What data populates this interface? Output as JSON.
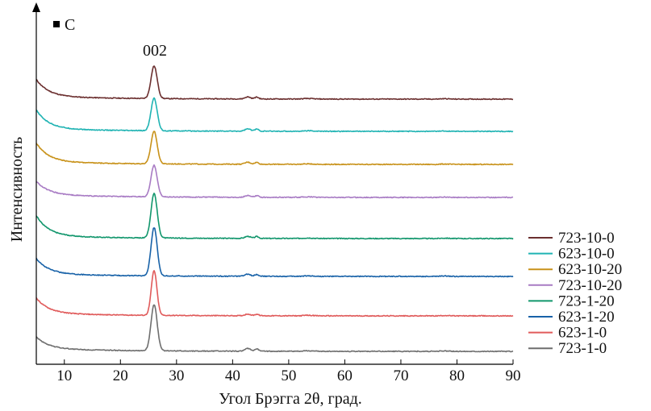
{
  "chart_data": {
    "type": "line",
    "panel_label": "C",
    "xlabel": "Угол Брэгга 2θ, град.",
    "ylabel": "Интенсивность",
    "xlim": [
      5,
      90
    ],
    "xticks": [
      10,
      20,
      30,
      40,
      50,
      60,
      70,
      80,
      90
    ],
    "annotation": {
      "text": "002",
      "x": 26
    },
    "legend_position": "right",
    "series": [
      {
        "name": "723-10-0",
        "color": "#6b2f2f",
        "offset": 7,
        "shape": {
          "start": 0.5,
          "base": 0.12,
          "peak_height": 0.62,
          "peak_width": 0.55,
          "bump": 0.06
        }
      },
      {
        "name": "623-10-0",
        "color": "#1fb3b3",
        "offset": 6,
        "shape": {
          "start": 0.55,
          "base": 0.12,
          "peak_height": 0.62,
          "peak_width": 0.55,
          "bump": 0.07
        }
      },
      {
        "name": "623-10-20",
        "color": "#c8921a",
        "offset": 5,
        "shape": {
          "start": 0.55,
          "base": 0.12,
          "peak_height": 0.62,
          "peak_width": 0.55,
          "bump": 0.06
        }
      },
      {
        "name": "723-10-20",
        "color": "#a87bc4",
        "offset": 4,
        "shape": {
          "start": 0.4,
          "base": 0.1,
          "peak_height": 0.6,
          "peak_width": 0.55,
          "bump": 0.05
        }
      },
      {
        "name": "723-1-20",
        "color": "#11966c",
        "offset": 3,
        "shape": {
          "start": 0.6,
          "base": 0.1,
          "peak_height": 0.85,
          "peak_width": 0.55,
          "bump": 0.06
        }
      },
      {
        "name": "623-1-20",
        "color": "#1862a8",
        "offset": 2,
        "shape": {
          "start": 0.45,
          "base": 0.1,
          "peak_height": 0.92,
          "peak_width": 0.55,
          "bump": 0.06
        }
      },
      {
        "name": "623-1-0",
        "color": "#e05a5a",
        "offset": 1,
        "shape": {
          "start": 0.45,
          "base": 0.1,
          "peak_height": 0.85,
          "peak_width": 0.5,
          "bump": 0.05
        }
      },
      {
        "name": "723-1-0",
        "color": "#6e6e6e",
        "offset": 0,
        "shape": {
          "start": 0.35,
          "base": 0.1,
          "peak_height": 0.88,
          "peak_width": 0.55,
          "bump": 0.08
        }
      }
    ]
  }
}
